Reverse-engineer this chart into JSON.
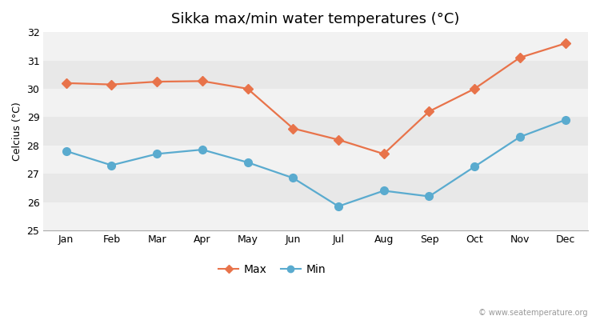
{
  "title": "Sikka max/min water temperatures (°C)",
  "ylabel": "Celcius (°C)",
  "months": [
    "Jan",
    "Feb",
    "Mar",
    "Apr",
    "May",
    "Jun",
    "Jul",
    "Aug",
    "Sep",
    "Oct",
    "Nov",
    "Dec"
  ],
  "max_temps": [
    30.2,
    30.15,
    30.25,
    30.27,
    30.0,
    28.6,
    28.2,
    27.7,
    29.2,
    30.0,
    31.1,
    31.6
  ],
  "min_temps": [
    27.8,
    27.3,
    27.7,
    27.85,
    27.4,
    26.85,
    25.85,
    26.4,
    26.2,
    27.25,
    28.3,
    28.9
  ],
  "max_color": "#e8734a",
  "min_color": "#5aabcf",
  "bg_color": "#ffffff",
  "plot_bg_color_light": "#f2f2f2",
  "plot_bg_color_dark": "#e8e8e8",
  "grid_color": "#ffffff",
  "ylim": [
    25,
    32
  ],
  "yticks": [
    25,
    26,
    27,
    28,
    29,
    30,
    31,
    32
  ],
  "watermark": "© www.seatemperature.org",
  "legend_max": "Max",
  "legend_min": "Min",
  "title_fontsize": 13,
  "label_fontsize": 9,
  "tick_fontsize": 9,
  "linewidth": 1.6,
  "markersize_max": 6,
  "markersize_min": 7
}
